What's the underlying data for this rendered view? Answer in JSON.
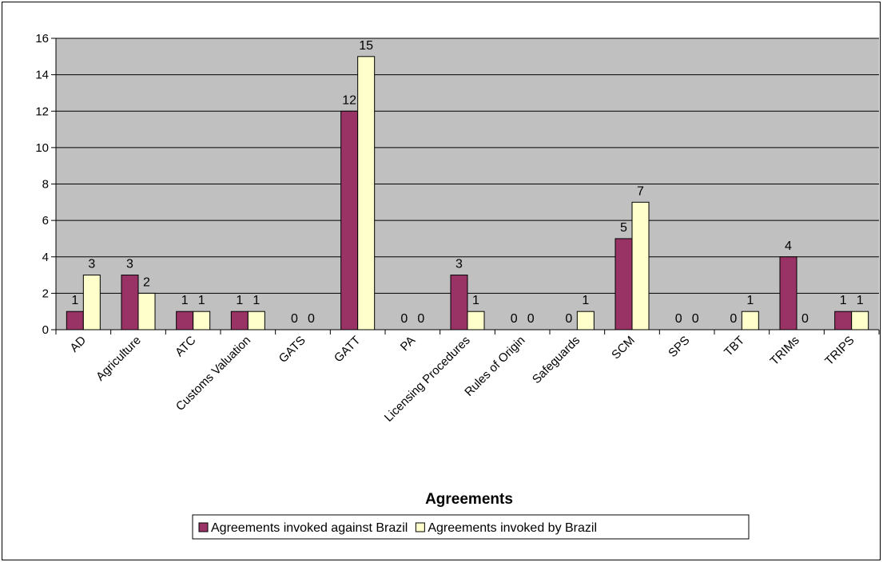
{
  "chart_data": {
    "type": "bar",
    "title": "",
    "xlabel": "Agreements",
    "ylabel": "",
    "ylim": [
      0,
      16
    ],
    "yticks": [
      0,
      2,
      4,
      6,
      8,
      10,
      12,
      14,
      16
    ],
    "grid": true,
    "legend_position": "bottom",
    "categories": [
      "AD",
      "Agriculture",
      "ATC",
      "Customs Valuation",
      "GATS",
      "GATT",
      "PA",
      "Licensing Procedures",
      "Rules of Origin",
      "Safeguards",
      "SCM",
      "SPS",
      "TBT",
      "TRIMs",
      "TRIPS"
    ],
    "series": [
      {
        "name": "Agreements invoked against Brazil",
        "color": "#993366",
        "values": [
          1,
          3,
          1,
          1,
          0,
          12,
          0,
          3,
          0,
          0,
          5,
          0,
          0,
          4,
          1
        ]
      },
      {
        "name": "Agreements invoked by Brazil",
        "color": "#FFFFCC",
        "values": [
          3,
          2,
          1,
          1,
          0,
          15,
          0,
          1,
          0,
          1,
          7,
          0,
          1,
          0,
          1
        ]
      }
    ],
    "plot_background": "#C0C0C0"
  }
}
